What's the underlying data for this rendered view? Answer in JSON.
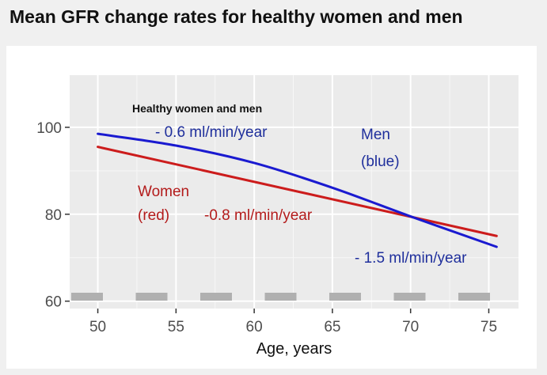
{
  "title": "Mean GFR change rates for healthy women and men",
  "chart_data": {
    "type": "line",
    "xlabel": "Age, years",
    "ylabel": "",
    "xlim": [
      48.2,
      76.9
    ],
    "ylim": [
      58.3,
      112
    ],
    "xticks": [
      50,
      55,
      60,
      65,
      70,
      75
    ],
    "yticks": [
      60,
      80,
      100
    ],
    "grid": true,
    "series": [
      {
        "name": "Men",
        "color": "#1a1ad0",
        "x": [
          50,
          55,
          60,
          65,
          70,
          75.5
        ],
        "y": [
          98.5,
          95.8,
          91.8,
          86.1,
          79.5,
          72.5
        ]
      },
      {
        "name": "Women",
        "color": "#cc1c1c",
        "x": [
          50,
          75.5
        ],
        "y": [
          95.5,
          75.0
        ]
      }
    ],
    "annotations": [
      {
        "id": "subtitle",
        "text": "Healthy women and men",
        "color": "#111111"
      },
      {
        "id": "men_rate",
        "text": "- 0.6 ml/min/year",
        "color": "#1f2f9c"
      },
      {
        "id": "men_label_1",
        "text": "Men",
        "color": "#1f2f9c"
      },
      {
        "id": "men_label_2",
        "text": "(blue)",
        "color": "#1f2f9c"
      },
      {
        "id": "women_label_1",
        "text": "Women",
        "color": "#b31b1b"
      },
      {
        "id": "women_label_2",
        "text": "(red)",
        "color": "#b31b1b"
      },
      {
        "id": "women_rate",
        "text": "-0.8 ml/min/year",
        "color": "#b31b1b"
      },
      {
        "id": "men_rate_late",
        "text": "- 1.5 ml/min/year",
        "color": "#1f2f9c"
      }
    ]
  }
}
